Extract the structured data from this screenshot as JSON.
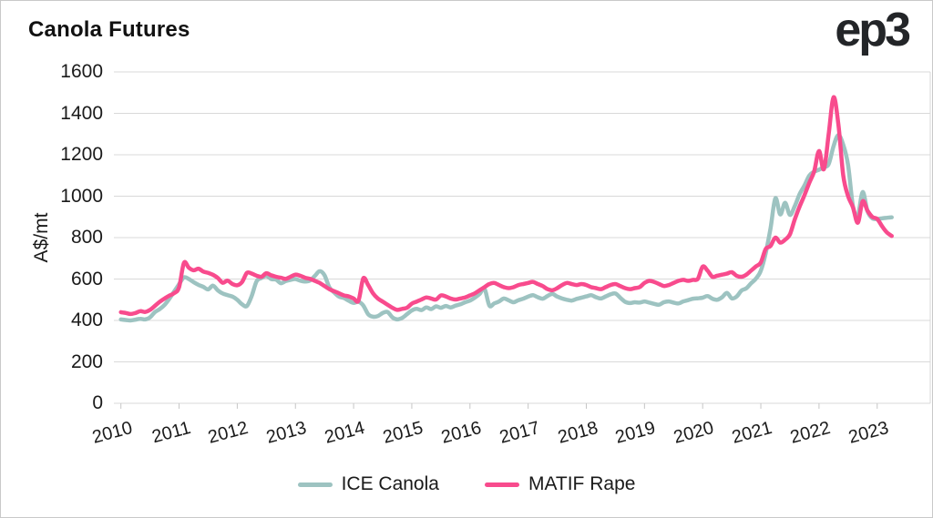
{
  "title": "Canola Futures",
  "logo": "ep3",
  "colors": {
    "ice_canola": "#9DC3C1",
    "matif_rape": "#F84B8D",
    "gridline": "#D9D9D9",
    "tick": "#C6C6C6",
    "text": "#1A1A1A"
  },
  "chart_data": {
    "type": "line",
    "title": "Canola Futures",
    "xlabel": "",
    "ylabel": "A$/mt",
    "ylim": [
      0,
      1600
    ],
    "ytick_step": 200,
    "yticks": [
      0,
      200,
      400,
      600,
      800,
      1000,
      1200,
      1400,
      1600
    ],
    "grid": "horizontal",
    "legend_position": "bottom",
    "x_unit": "monthly",
    "x_start": "2010-01",
    "x_end": "2023-04",
    "x_tick_labels": [
      "2010",
      "2011",
      "2012",
      "2013",
      "2014",
      "2015",
      "2016",
      "2017",
      "2018",
      "2019",
      "2020",
      "2021",
      "2022",
      "2023"
    ],
    "series": [
      {
        "name": "ICE Canola",
        "color": "#9DC3C1",
        "values": [
          405,
          402,
          400,
          404,
          408,
          405,
          415,
          440,
          455,
          475,
          505,
          540,
          575,
          608,
          600,
          585,
          572,
          562,
          550,
          568,
          545,
          530,
          522,
          515,
          500,
          478,
          470,
          520,
          590,
          605,
          615,
          600,
          597,
          580,
          590,
          596,
          600,
          592,
          588,
          593,
          615,
          638,
          618,
          560,
          535,
          515,
          508,
          495,
          485,
          490,
          472,
          430,
          418,
          421,
          436,
          441,
          415,
          405,
          412,
          430,
          448,
          456,
          450,
          463,
          455,
          468,
          461,
          470,
          463,
          471,
          478,
          488,
          496,
          510,
          528,
          553,
          472,
          482,
          492,
          506,
          497,
          488,
          498,
          505,
          515,
          522,
          512,
          505,
          518,
          528,
          515,
          506,
          500,
          496,
          504,
          510,
          516,
          522,
          512,
          506,
          516,
          526,
          530,
          510,
          490,
          484,
          488,
          486,
          492,
          486,
          480,
          476,
          488,
          492,
          486,
          482,
          492,
          498,
          505,
          507,
          510,
          518,
          505,
          500,
          512,
          533,
          507,
          515,
          544,
          555,
          580,
          602,
          640,
          725,
          845,
          990,
          912,
          968,
          910,
          952,
          1010,
          1052,
          1100,
          1118,
          1128,
          1140,
          1155,
          1242,
          1295,
          1248,
          1150,
          952,
          905,
          1020,
          928,
          893,
          890,
          893,
          896,
          898
        ]
      },
      {
        "name": "MATIF Rape",
        "color": "#F84B8D",
        "values": [
          440,
          436,
          431,
          436,
          445,
          441,
          451,
          470,
          490,
          506,
          520,
          532,
          560,
          678,
          655,
          642,
          650,
          636,
          630,
          620,
          605,
          582,
          592,
          576,
          570,
          586,
          630,
          626,
          616,
          611,
          628,
          618,
          611,
          606,
          601,
          611,
          621,
          616,
          606,
          601,
          591,
          581,
          566,
          551,
          541,
          531,
          521,
          516,
          506,
          496,
          603,
          571,
          531,
          506,
          491,
          476,
          461,
          451,
          456,
          461,
          481,
          491,
          501,
          511,
          506,
          501,
          521,
          516,
          506,
          501,
          506,
          511,
          521,
          531,
          546,
          561,
          576,
          581,
          571,
          561,
          556,
          561,
          571,
          576,
          581,
          586,
          576,
          566,
          551,
          546,
          556,
          571,
          581,
          576,
          571,
          576,
          571,
          561,
          556,
          551,
          561,
          571,
          576,
          566,
          556,
          551,
          556,
          561,
          581,
          591,
          586,
          576,
          566,
          571,
          581,
          591,
          596,
          591,
          596,
          601,
          660,
          641,
          611,
          616,
          621,
          626,
          633,
          616,
          611,
          621,
          641,
          661,
          680,
          745,
          760,
          800,
          776,
          790,
          816,
          888,
          950,
          1005,
          1065,
          1120,
          1218,
          1130,
          1300,
          1478,
          1345,
          1100,
          1000,
          947,
          872,
          975,
          930,
          900,
          890,
          855,
          825,
          808
        ]
      }
    ]
  }
}
